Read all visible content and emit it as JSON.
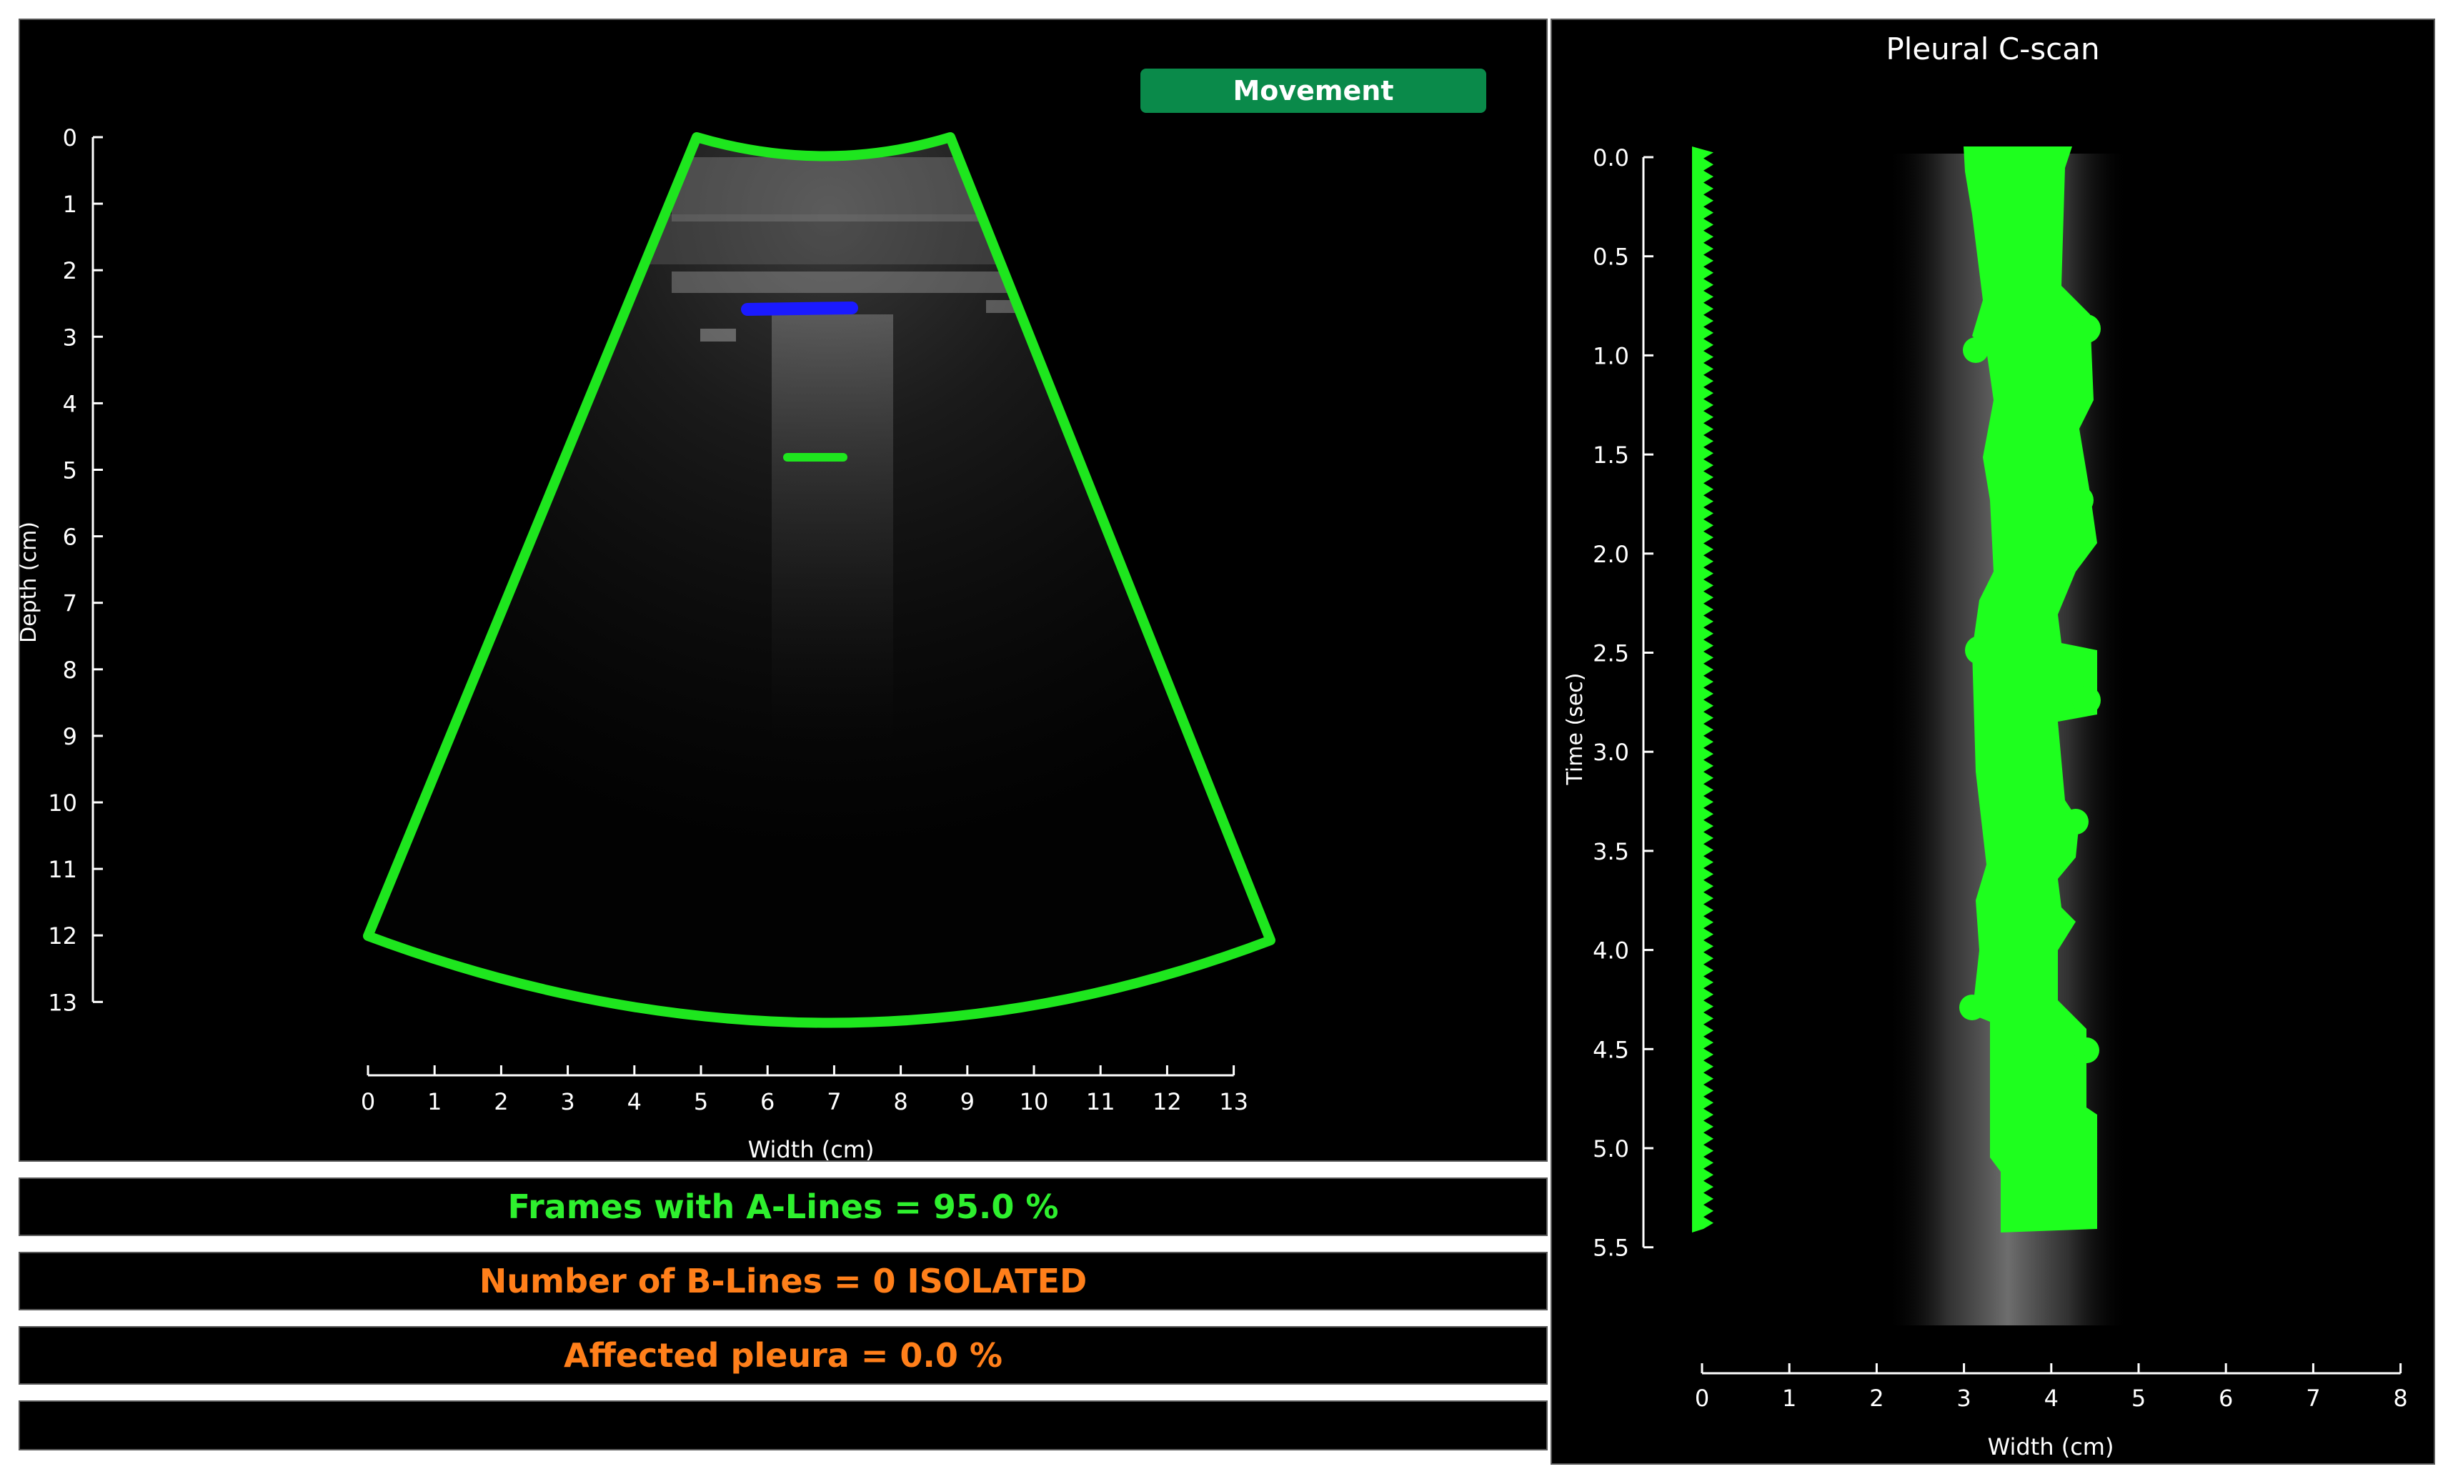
{
  "left_plot": {
    "status_label": "Movement",
    "x_axis_label": "Width (cm)",
    "y_axis_label": "Depth (cm)",
    "x_ticks": [
      "0",
      "1",
      "2",
      "3",
      "4",
      "5",
      "6",
      "7",
      "8",
      "9",
      "10",
      "11",
      "12",
      "13"
    ],
    "y_ticks": [
      "0",
      "1",
      "2",
      "3",
      "4",
      "5",
      "6",
      "7",
      "8",
      "9",
      "10",
      "11",
      "12",
      "13"
    ],
    "sector_color": "#1ee61e",
    "pleura_marker_color": "#1a1aff",
    "aline_marker_color": "#1ee61e"
  },
  "results": {
    "a_lines": "Frames with A-Lines = 95.0 %",
    "b_lines": "Number of B-Lines = 0 ISOLATED",
    "affected": "Affected pleura = 0.0 %",
    "extra": ""
  },
  "c_scan": {
    "title": "Pleural C-scan",
    "x_axis_label": "Width (cm)",
    "y_axis_label": "Time (sec)",
    "x_ticks": [
      "0",
      "1",
      "2",
      "3",
      "4",
      "5",
      "6",
      "7",
      "8"
    ],
    "y_ticks": [
      "0.0",
      "0.5",
      "1.0",
      "1.5",
      "2.0",
      "2.5",
      "3.0",
      "3.5",
      "4.0",
      "4.5",
      "5.0",
      "5.5"
    ],
    "marker_color": "#1eff1e"
  },
  "colors": {
    "results_green": "#2ef02e",
    "results_orange": "#ff7f1a",
    "button_green": "#0a8a4a"
  }
}
